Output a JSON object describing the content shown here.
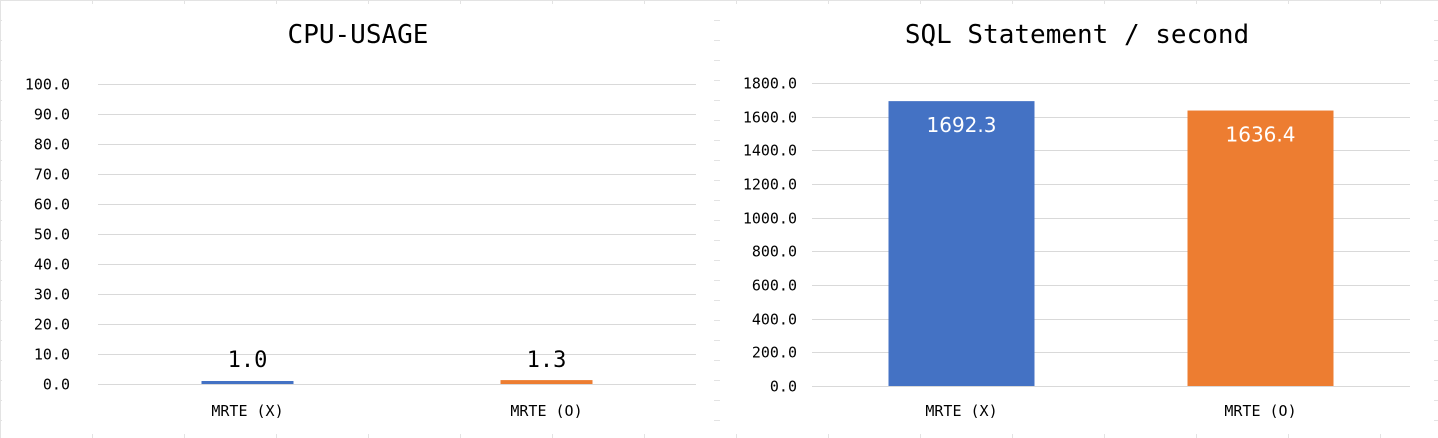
{
  "colors": {
    "series_x": "#4472c4",
    "series_o": "#ed7d31",
    "gridline": "#d9d9d9",
    "sheet_grid": "#e3e3e3"
  },
  "chart_data": [
    {
      "type": "bar",
      "title": "CPU-USAGE",
      "categories": [
        "MRTE (X)",
        "MRTE (O)"
      ],
      "values": [
        1.0,
        1.3
      ],
      "data_labels": [
        "1.0",
        "1.3"
      ],
      "colors": [
        "#4472c4",
        "#ed7d31"
      ],
      "ylim": [
        0,
        100
      ],
      "yticks": [
        "0.0",
        "10.0",
        "20.0",
        "30.0",
        "40.0",
        "50.0",
        "60.0",
        "70.0",
        "80.0",
        "90.0",
        "100.0"
      ],
      "grid": true,
      "data_label_position": "outside-end"
    },
    {
      "type": "bar",
      "title": "SQL Statement / second",
      "categories": [
        "MRTE (X)",
        "MRTE (O)"
      ],
      "values": [
        1692.3,
        1636.4
      ],
      "data_labels": [
        "1692.3",
        "1636.4"
      ],
      "colors": [
        "#4472c4",
        "#ed7d31"
      ],
      "ylim": [
        0,
        1800
      ],
      "yticks": [
        "0.0",
        "200.0",
        "400.0",
        "600.0",
        "800.0",
        "1000.0",
        "1200.0",
        "1400.0",
        "1600.0",
        "1800.0"
      ],
      "grid": true,
      "data_label_position": "inside-end"
    }
  ]
}
